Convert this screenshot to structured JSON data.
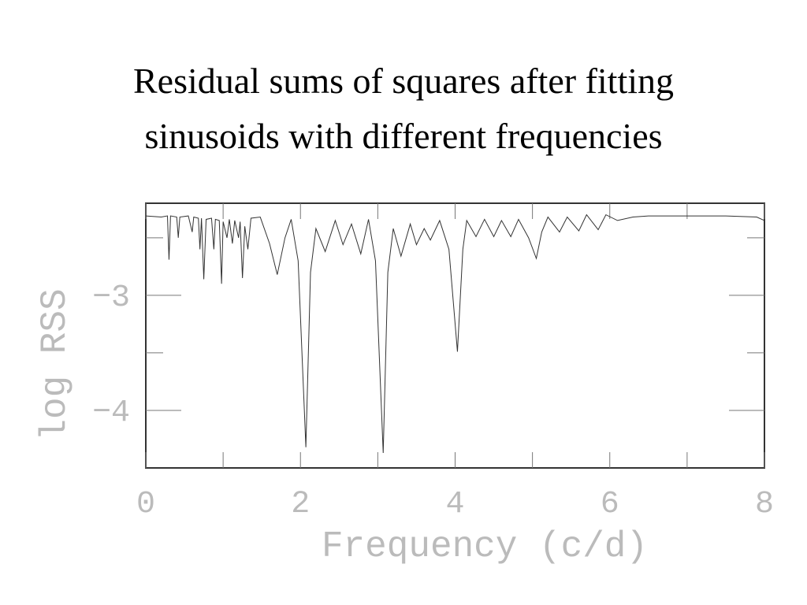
{
  "chart_data": {
    "type": "line",
    "title": [
      "Residual sums of squares after fitting",
      "sinusoids with different frequencies"
    ],
    "xlabel": "Frequency (c/d)",
    "ylabel": "log RSS",
    "xlim": [
      0,
      8
    ],
    "ylim": [
      -4.5,
      -2.2
    ],
    "xticks": [
      0,
      2,
      4,
      6,
      8
    ],
    "xminor_ticks": [
      1,
      3,
      5,
      7
    ],
    "yticks": [
      {
        "value": -3,
        "label": "−3"
      },
      {
        "value": -4,
        "label": "−4"
      }
    ],
    "yminor_ticks": [
      -2.5,
      -3.5
    ],
    "color": "#333333",
    "x": [
      0,
      0.2,
      0.28,
      0.3,
      0.32,
      0.4,
      0.42,
      0.44,
      0.55,
      0.6,
      0.62,
      0.68,
      0.7,
      0.72,
      0.75,
      0.78,
      0.85,
      0.88,
      0.9,
      0.95,
      0.98,
      1.0,
      1.05,
      1.08,
      1.12,
      1.15,
      1.2,
      1.22,
      1.25,
      1.28,
      1.32,
      1.36,
      1.48,
      1.6,
      1.7,
      1.8,
      1.88,
      1.97,
      2.07,
      2.13,
      2.2,
      2.32,
      2.45,
      2.55,
      2.66,
      2.78,
      2.88,
      2.97,
      3.07,
      3.13,
      3.2,
      3.3,
      3.42,
      3.5,
      3.6,
      3.68,
      3.8,
      3.92,
      4.03,
      4.1,
      4.15,
      4.27,
      4.38,
      4.5,
      4.6,
      4.72,
      4.82,
      4.95,
      5.05,
      5.12,
      5.2,
      5.35,
      5.45,
      5.6,
      5.7,
      5.85,
      5.95,
      6.1,
      6.3,
      6.5,
      7,
      7.5,
      7.9,
      8
    ],
    "values": [
      -2.31,
      -2.32,
      -2.31,
      -2.69,
      -2.31,
      -2.32,
      -2.5,
      -2.32,
      -2.31,
      -2.45,
      -2.32,
      -2.33,
      -2.6,
      -2.33,
      -2.86,
      -2.34,
      -2.33,
      -2.6,
      -2.34,
      -2.35,
      -2.9,
      -2.36,
      -2.5,
      -2.34,
      -2.55,
      -2.35,
      -2.5,
      -2.36,
      -2.85,
      -2.4,
      -2.6,
      -2.33,
      -2.32,
      -2.55,
      -2.82,
      -2.5,
      -2.34,
      -2.7,
      -4.32,
      -2.8,
      -2.42,
      -2.62,
      -2.35,
      -2.56,
      -2.38,
      -2.64,
      -2.34,
      -2.7,
      -4.37,
      -2.8,
      -2.42,
      -2.66,
      -2.38,
      -2.56,
      -2.42,
      -2.52,
      -2.35,
      -2.6,
      -3.49,
      -2.6,
      -2.35,
      -2.49,
      -2.34,
      -2.49,
      -2.35,
      -2.49,
      -2.34,
      -2.5,
      -2.68,
      -2.45,
      -2.32,
      -2.45,
      -2.32,
      -2.44,
      -2.3,
      -2.43,
      -2.3,
      -2.35,
      -2.32,
      -2.31,
      -2.31,
      -2.31,
      -2.32,
      -2.35
    ]
  }
}
